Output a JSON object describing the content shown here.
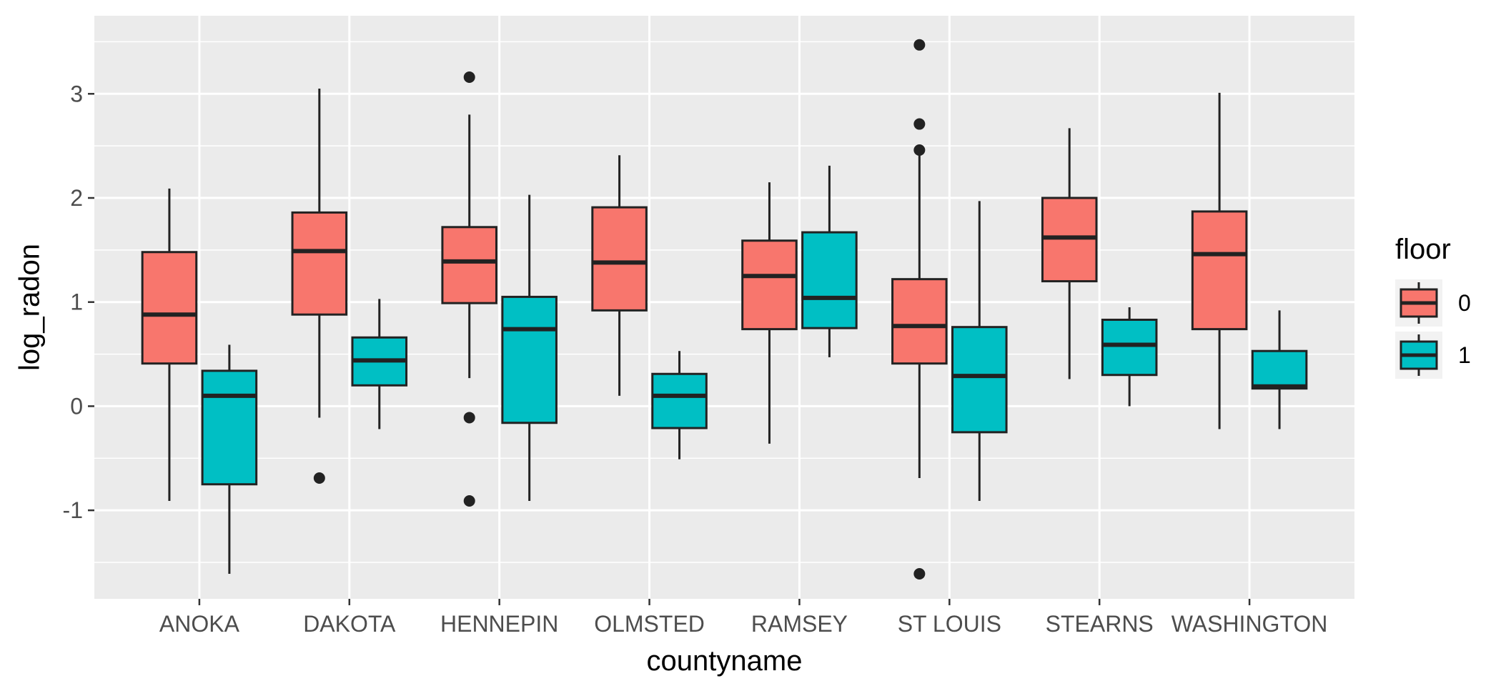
{
  "chart_data": {
    "type": "boxplot",
    "xlabel": "countyname",
    "ylabel": "log_radon",
    "ylim": [
      -1.85,
      3.75
    ],
    "yticks": [
      -1,
      0,
      1,
      2,
      3
    ],
    "yticklabels": [
      "-1",
      "0",
      "1",
      "2",
      "3"
    ],
    "grid": true,
    "categories": [
      "ANOKA",
      "DAKOTA",
      "HENNEPIN",
      "OLMSTED",
      "RAMSEY",
      "ST LOUIS",
      "STEARNS",
      "WASHINGTON"
    ],
    "legend": {
      "title": "floor",
      "position": "right"
    },
    "series": [
      {
        "name": "0",
        "color": "#F8766D",
        "boxes": [
          {
            "min": -0.91,
            "q1": 0.41,
            "median": 0.88,
            "q3": 1.48,
            "max": 2.09,
            "outliers": []
          },
          {
            "min": -0.11,
            "q1": 0.88,
            "median": 1.49,
            "q3": 1.86,
            "max": 3.05,
            "outliers": [
              -0.69
            ]
          },
          {
            "min": 0.27,
            "q1": 0.99,
            "median": 1.39,
            "q3": 1.72,
            "max": 2.8,
            "outliers": [
              3.16,
              -0.11,
              -0.91
            ]
          },
          {
            "min": 0.1,
            "q1": 0.92,
            "median": 1.38,
            "q3": 1.91,
            "max": 2.41,
            "outliers": []
          },
          {
            "min": -0.36,
            "q1": 0.74,
            "median": 1.25,
            "q3": 1.59,
            "max": 2.15,
            "outliers": []
          },
          {
            "min": -0.69,
            "q1": 0.41,
            "median": 0.77,
            "q3": 1.22,
            "max": 2.44,
            "outliers": [
              3.47,
              2.71,
              2.46,
              -1.61
            ]
          },
          {
            "min": 0.26,
            "q1": 1.2,
            "median": 1.62,
            "q3": 2.0,
            "max": 2.67,
            "outliers": []
          },
          {
            "min": -0.22,
            "q1": 0.74,
            "median": 1.46,
            "q3": 1.87,
            "max": 3.01,
            "outliers": []
          }
        ]
      },
      {
        "name": "1",
        "color": "#00BFC4",
        "boxes": [
          {
            "min": -1.61,
            "q1": -0.75,
            "median": 0.1,
            "q3": 0.34,
            "max": 0.59,
            "outliers": []
          },
          {
            "min": -0.22,
            "q1": 0.2,
            "median": 0.44,
            "q3": 0.66,
            "max": 1.03,
            "outliers": []
          },
          {
            "min": -0.91,
            "q1": -0.16,
            "median": 0.74,
            "q3": 1.05,
            "max": 2.03,
            "outliers": []
          },
          {
            "min": -0.51,
            "q1": -0.21,
            "median": 0.1,
            "q3": 0.31,
            "max": 0.53,
            "outliers": []
          },
          {
            "min": 0.47,
            "q1": 0.75,
            "median": 1.04,
            "q3": 1.67,
            "max": 2.31,
            "outliers": []
          },
          {
            "min": -0.91,
            "q1": -0.25,
            "median": 0.29,
            "q3": 0.76,
            "max": 1.97,
            "outliers": []
          },
          {
            "min": 0.0,
            "q1": 0.3,
            "median": 0.59,
            "q3": 0.83,
            "max": 0.95,
            "outliers": []
          },
          {
            "min": -0.22,
            "q1": 0.17,
            "median": 0.19,
            "q3": 0.53,
            "max": 0.92,
            "outliers": []
          }
        ]
      }
    ]
  }
}
